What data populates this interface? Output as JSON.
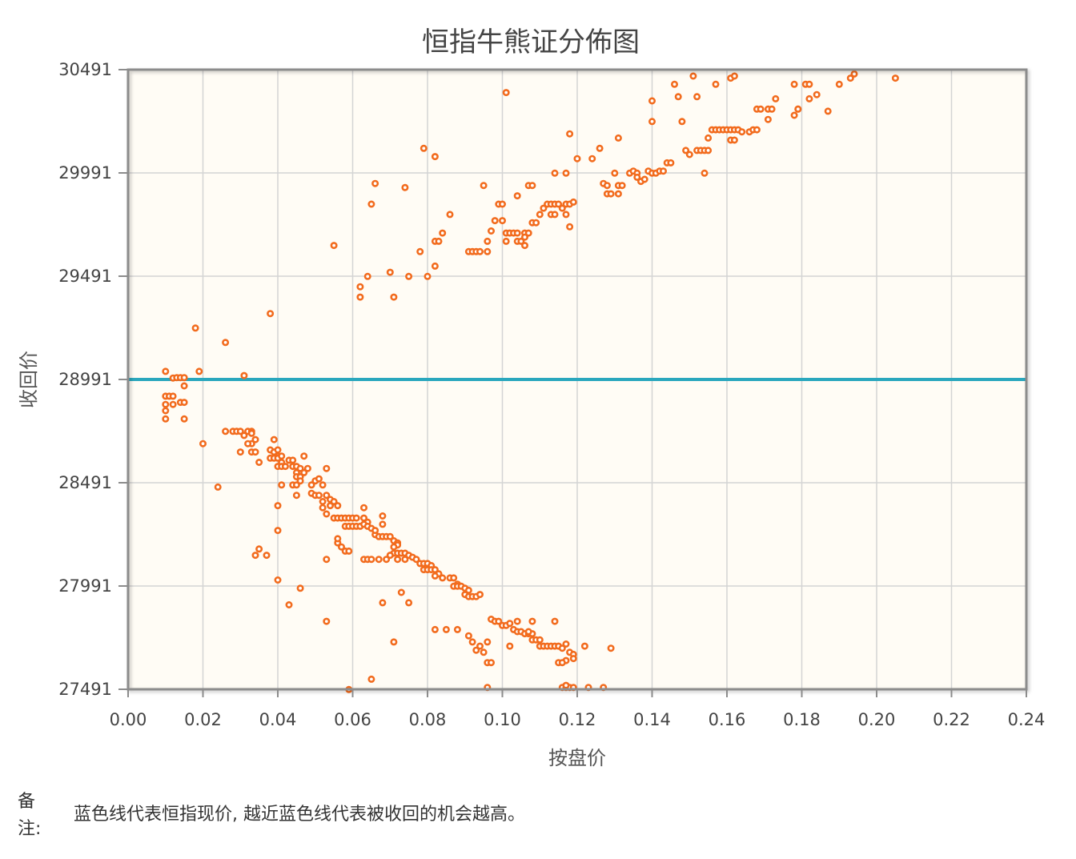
{
  "chart_data": {
    "type": "scatter",
    "title": "恒指牛熊证分佈图",
    "xlabel": "按盘价",
    "ylabel": "收回价",
    "xlim": [
      0,
      0.24
    ],
    "ylim": [
      27491,
      30491
    ],
    "x_ticks": [
      0.0,
      0.02,
      0.04,
      0.06,
      0.08,
      0.1,
      0.12,
      0.14,
      0.16,
      0.18,
      0.2,
      0.22,
      0.24
    ],
    "x_tick_labels": [
      "0.00",
      "0.02",
      "0.04",
      "0.06",
      "0.08",
      "0.10",
      "0.12",
      "0.14",
      "0.16",
      "0.18",
      "0.20",
      "0.22",
      "0.24"
    ],
    "y_ticks": [
      27491,
      27991,
      28491,
      28991,
      29491,
      29991,
      30491
    ],
    "y_tick_labels": [
      "27491",
      "27991",
      "28491",
      "28991",
      "29491",
      "29991",
      "30491"
    ],
    "grid": true,
    "reference_line": {
      "y": 28991,
      "color": "#2aa7bd"
    },
    "point_color": "#f26b1d",
    "plot_background": "#fffcf5",
    "points": [
      [
        0.01,
        29030
      ],
      [
        0.012,
        28998
      ],
      [
        0.013,
        29000
      ],
      [
        0.014,
        29000
      ],
      [
        0.015,
        29000
      ],
      [
        0.015,
        28960
      ],
      [
        0.018,
        29240
      ],
      [
        0.019,
        29030
      ],
      [
        0.01,
        28910
      ],
      [
        0.011,
        28910
      ],
      [
        0.012,
        28910
      ],
      [
        0.01,
        28870
      ],
      [
        0.012,
        28870
      ],
      [
        0.014,
        28880
      ],
      [
        0.015,
        28880
      ],
      [
        0.01,
        28840
      ],
      [
        0.01,
        28800
      ],
      [
        0.015,
        28800
      ],
      [
        0.02,
        28680
      ],
      [
        0.024,
        28470
      ],
      [
        0.026,
        29170
      ],
      [
        0.031,
        29010
      ],
      [
        0.026,
        28740
      ],
      [
        0.028,
        28740
      ],
      [
        0.029,
        28740
      ],
      [
        0.03,
        28740
      ],
      [
        0.031,
        28720
      ],
      [
        0.032,
        28740
      ],
      [
        0.033,
        28740
      ],
      [
        0.033,
        28730
      ],
      [
        0.034,
        28700
      ],
      [
        0.033,
        28680
      ],
      [
        0.032,
        28680
      ],
      [
        0.03,
        28640
      ],
      [
        0.033,
        28640
      ],
      [
        0.034,
        28640
      ],
      [
        0.035,
        28590
      ],
      [
        0.038,
        29310
      ],
      [
        0.039,
        28700
      ],
      [
        0.038,
        28650
      ],
      [
        0.039,
        28640
      ],
      [
        0.04,
        28650
      ],
      [
        0.04,
        28620
      ],
      [
        0.038,
        28610
      ],
      [
        0.039,
        28610
      ],
      [
        0.04,
        28610
      ],
      [
        0.041,
        28620
      ],
      [
        0.041,
        28590
      ],
      [
        0.04,
        28570
      ],
      [
        0.041,
        28570
      ],
      [
        0.042,
        28570
      ],
      [
        0.043,
        28600
      ],
      [
        0.044,
        28600
      ],
      [
        0.044,
        28570
      ],
      [
        0.045,
        28570
      ],
      [
        0.046,
        28560
      ],
      [
        0.047,
        28620
      ],
      [
        0.048,
        28560
      ],
      [
        0.047,
        28540
      ],
      [
        0.045,
        28540
      ],
      [
        0.045,
        28520
      ],
      [
        0.046,
        28520
      ],
      [
        0.044,
        28480
      ],
      [
        0.045,
        28480
      ],
      [
        0.046,
        28500
      ],
      [
        0.049,
        28480
      ],
      [
        0.05,
        28500
      ],
      [
        0.051,
        28510
      ],
      [
        0.052,
        28480
      ],
      [
        0.053,
        28560
      ],
      [
        0.041,
        28480
      ],
      [
        0.04,
        28380
      ],
      [
        0.045,
        28430
      ],
      [
        0.049,
        28440
      ],
      [
        0.05,
        28430
      ],
      [
        0.051,
        28430
      ],
      [
        0.052,
        28400
      ],
      [
        0.053,
        28430
      ],
      [
        0.054,
        28410
      ],
      [
        0.055,
        28400
      ],
      [
        0.056,
        28380
      ],
      [
        0.054,
        28380
      ],
      [
        0.052,
        28370
      ],
      [
        0.053,
        28340
      ],
      [
        0.055,
        28320
      ],
      [
        0.056,
        28320
      ],
      [
        0.057,
        28320
      ],
      [
        0.058,
        28320
      ],
      [
        0.059,
        28320
      ],
      [
        0.06,
        28320
      ],
      [
        0.061,
        28320
      ],
      [
        0.063,
        28370
      ],
      [
        0.063,
        28320
      ],
      [
        0.064,
        28300
      ],
      [
        0.058,
        28280
      ],
      [
        0.059,
        28280
      ],
      [
        0.06,
        28280
      ],
      [
        0.061,
        28280
      ],
      [
        0.062,
        28280
      ],
      [
        0.063,
        28290
      ],
      [
        0.064,
        28280
      ],
      [
        0.065,
        28270
      ],
      [
        0.066,
        28240
      ],
      [
        0.066,
        28260
      ],
      [
        0.067,
        28230
      ],
      [
        0.068,
        28230
      ],
      [
        0.069,
        28230
      ],
      [
        0.07,
        28230
      ],
      [
        0.071,
        28210
      ],
      [
        0.072,
        28200
      ],
      [
        0.068,
        28330
      ],
      [
        0.068,
        28290
      ],
      [
        0.072,
        28190
      ],
      [
        0.071,
        28180
      ],
      [
        0.071,
        28150
      ],
      [
        0.072,
        28150
      ],
      [
        0.073,
        28150
      ],
      [
        0.074,
        28150
      ],
      [
        0.075,
        28140
      ],
      [
        0.076,
        28130
      ],
      [
        0.074,
        28120
      ],
      [
        0.077,
        28120
      ],
      [
        0.078,
        28100
      ],
      [
        0.079,
        28100
      ],
      [
        0.08,
        28100
      ],
      [
        0.081,
        28090
      ],
      [
        0.079,
        28070
      ],
      [
        0.08,
        28070
      ],
      [
        0.081,
        28070
      ],
      [
        0.082,
        28070
      ],
      [
        0.083,
        28050
      ],
      [
        0.082,
        28040
      ],
      [
        0.084,
        28030
      ],
      [
        0.086,
        28030
      ],
      [
        0.087,
        28030
      ],
      [
        0.088,
        28000
      ],
      [
        0.087,
        27990
      ],
      [
        0.088,
        27990
      ],
      [
        0.089,
        27990
      ],
      [
        0.09,
        27980
      ],
      [
        0.091,
        27970
      ],
      [
        0.09,
        27950
      ],
      [
        0.091,
        27940
      ],
      [
        0.092,
        27940
      ],
      [
        0.093,
        27940
      ],
      [
        0.094,
        27950
      ],
      [
        0.056,
        28200
      ],
      [
        0.057,
        28180
      ],
      [
        0.058,
        28160
      ],
      [
        0.059,
        28160
      ],
      [
        0.056,
        28220
      ],
      [
        0.063,
        28120
      ],
      [
        0.064,
        28120
      ],
      [
        0.065,
        28120
      ],
      [
        0.067,
        28120
      ],
      [
        0.069,
        28120
      ],
      [
        0.07,
        28140
      ],
      [
        0.072,
        28120
      ],
      [
        0.053,
        28120
      ],
      [
        0.04,
        28020
      ],
      [
        0.043,
        27900
      ],
      [
        0.046,
        27980
      ],
      [
        0.053,
        27820
      ],
      [
        0.059,
        27490
      ],
      [
        0.065,
        27540
      ],
      [
        0.071,
        27720
      ],
      [
        0.075,
        27910
      ],
      [
        0.073,
        27960
      ],
      [
        0.068,
        27910
      ],
      [
        0.035,
        28170
      ],
      [
        0.037,
        28140
      ],
      [
        0.034,
        28140
      ],
      [
        0.04,
        28260
      ],
      [
        0.097,
        27830
      ],
      [
        0.098,
        27820
      ],
      [
        0.099,
        27820
      ],
      [
        0.1,
        27800
      ],
      [
        0.101,
        27800
      ],
      [
        0.102,
        27810
      ],
      [
        0.103,
        27780
      ],
      [
        0.104,
        27770
      ],
      [
        0.105,
        27770
      ],
      [
        0.104,
        27820
      ],
      [
        0.106,
        27760
      ],
      [
        0.107,
        27760
      ],
      [
        0.108,
        27760
      ],
      [
        0.108,
        27820
      ],
      [
        0.107,
        27770
      ],
      [
        0.108,
        27730
      ],
      [
        0.109,
        27730
      ],
      [
        0.11,
        27730
      ],
      [
        0.11,
        27700
      ],
      [
        0.111,
        27700
      ],
      [
        0.112,
        27700
      ],
      [
        0.113,
        27700
      ],
      [
        0.114,
        27700
      ],
      [
        0.115,
        27700
      ],
      [
        0.114,
        27820
      ],
      [
        0.116,
        27690
      ],
      [
        0.117,
        27710
      ],
      [
        0.118,
        27670
      ],
      [
        0.119,
        27660
      ],
      [
        0.117,
        27630
      ],
      [
        0.115,
        27620
      ],
      [
        0.116,
        27620
      ],
      [
        0.119,
        27640
      ],
      [
        0.122,
        27700
      ],
      [
        0.116,
        27500
      ],
      [
        0.117,
        27500
      ],
      [
        0.118,
        27500
      ],
      [
        0.117,
        27510
      ],
      [
        0.119,
        27500
      ],
      [
        0.123,
        27500
      ],
      [
        0.127,
        27500
      ],
      [
        0.129,
        27690
      ],
      [
        0.102,
        27700
      ],
      [
        0.096,
        27720
      ],
      [
        0.095,
        27670
      ],
      [
        0.094,
        27700
      ],
      [
        0.093,
        27680
      ],
      [
        0.096,
        27620
      ],
      [
        0.097,
        27620
      ],
      [
        0.096,
        27500
      ],
      [
        0.082,
        27780
      ],
      [
        0.085,
        27780
      ],
      [
        0.088,
        27780
      ],
      [
        0.091,
        27750
      ],
      [
        0.092,
        27720
      ],
      [
        0.055,
        29640
      ],
      [
        0.062,
        29440
      ],
      [
        0.062,
        29390
      ],
      [
        0.064,
        29490
      ],
      [
        0.065,
        29840
      ],
      [
        0.066,
        29940
      ],
      [
        0.07,
        29510
      ],
      [
        0.071,
        29390
      ],
      [
        0.074,
        29920
      ],
      [
        0.075,
        29490
      ],
      [
        0.078,
        29610
      ],
      [
        0.079,
        30110
      ],
      [
        0.08,
        29490
      ],
      [
        0.082,
        29540
      ],
      [
        0.082,
        30070
      ],
      [
        0.082,
        29660
      ],
      [
        0.083,
        29660
      ],
      [
        0.084,
        29700
      ],
      [
        0.086,
        29790
      ],
      [
        0.091,
        29610
      ],
      [
        0.092,
        29610
      ],
      [
        0.093,
        29610
      ],
      [
        0.094,
        29610
      ],
      [
        0.096,
        29660
      ],
      [
        0.096,
        29610
      ],
      [
        0.097,
        29710
      ],
      [
        0.098,
        29760
      ],
      [
        0.099,
        29840
      ],
      [
        0.1,
        29840
      ],
      [
        0.101,
        29700
      ],
      [
        0.101,
        29660
      ],
      [
        0.102,
        29700
      ],
      [
        0.103,
        29700
      ],
      [
        0.104,
        29700
      ],
      [
        0.104,
        29660
      ],
      [
        0.105,
        29660
      ],
      [
        0.106,
        29640
      ],
      [
        0.106,
        29700
      ],
      [
        0.107,
        29700
      ],
      [
        0.107,
        29930
      ],
      [
        0.108,
        29930
      ],
      [
        0.104,
        29880
      ],
      [
        0.106,
        29680
      ],
      [
        0.095,
        29930
      ],
      [
        0.1,
        29760
      ],
      [
        0.108,
        29750
      ],
      [
        0.109,
        29750
      ],
      [
        0.11,
        29790
      ],
      [
        0.111,
        29820
      ],
      [
        0.112,
        29840
      ],
      [
        0.113,
        29790
      ],
      [
        0.114,
        29790
      ],
      [
        0.113,
        29840
      ],
      [
        0.114,
        29840
      ],
      [
        0.115,
        29840
      ],
      [
        0.116,
        29820
      ],
      [
        0.117,
        29840
      ],
      [
        0.118,
        29840
      ],
      [
        0.119,
        29850
      ],
      [
        0.117,
        29790
      ],
      [
        0.118,
        29730
      ],
      [
        0.114,
        29990
      ],
      [
        0.117,
        29990
      ],
      [
        0.118,
        30180
      ],
      [
        0.12,
        30060
      ],
      [
        0.124,
        30060
      ],
      [
        0.126,
        30110
      ],
      [
        0.127,
        29940
      ],
      [
        0.128,
        29930
      ],
      [
        0.128,
        29890
      ],
      [
        0.129,
        29890
      ],
      [
        0.131,
        29890
      ],
      [
        0.13,
        29990
      ],
      [
        0.131,
        29930
      ],
      [
        0.132,
        29930
      ],
      [
        0.131,
        30160
      ],
      [
        0.101,
        30380
      ],
      [
        0.134,
        29990
      ],
      [
        0.135,
        30000
      ],
      [
        0.136,
        29990
      ],
      [
        0.136,
        29970
      ],
      [
        0.137,
        29950
      ],
      [
        0.138,
        29960
      ],
      [
        0.139,
        30000
      ],
      [
        0.14,
        29990
      ],
      [
        0.141,
        29990
      ],
      [
        0.142,
        30000
      ],
      [
        0.143,
        30000
      ],
      [
        0.144,
        30040
      ],
      [
        0.145,
        30040
      ],
      [
        0.14,
        30240
      ],
      [
        0.14,
        30340
      ],
      [
        0.146,
        30420
      ],
      [
        0.147,
        30360
      ],
      [
        0.148,
        30240
      ],
      [
        0.149,
        30100
      ],
      [
        0.151,
        30460
      ],
      [
        0.152,
        30360
      ],
      [
        0.15,
        30080
      ],
      [
        0.152,
        30100
      ],
      [
        0.153,
        30100
      ],
      [
        0.154,
        30100
      ],
      [
        0.155,
        30100
      ],
      [
        0.154,
        29990
      ],
      [
        0.155,
        30160
      ],
      [
        0.156,
        30200
      ],
      [
        0.157,
        30200
      ],
      [
        0.157,
        30420
      ],
      [
        0.158,
        30200
      ],
      [
        0.159,
        30200
      ],
      [
        0.16,
        30200
      ],
      [
        0.161,
        30150
      ],
      [
        0.161,
        30200
      ],
      [
        0.162,
        30200
      ],
      [
        0.162,
        30150
      ],
      [
        0.163,
        30200
      ],
      [
        0.164,
        30190
      ],
      [
        0.166,
        30190
      ],
      [
        0.167,
        30200
      ],
      [
        0.168,
        30200
      ],
      [
        0.161,
        30450
      ],
      [
        0.162,
        30460
      ],
      [
        0.168,
        30300
      ],
      [
        0.169,
        30300
      ],
      [
        0.171,
        30300
      ],
      [
        0.172,
        30300
      ],
      [
        0.171,
        30250
      ],
      [
        0.173,
        30350
      ],
      [
        0.178,
        30270
      ],
      [
        0.179,
        30300
      ],
      [
        0.179,
        30300
      ],
      [
        0.178,
        30420
      ],
      [
        0.181,
        30420
      ],
      [
        0.182,
        30420
      ],
      [
        0.182,
        30350
      ],
      [
        0.184,
        30370
      ],
      [
        0.187,
        30290
      ],
      [
        0.19,
        30420
      ],
      [
        0.193,
        30450
      ],
      [
        0.194,
        30470
      ],
      [
        0.205,
        30450
      ]
    ]
  }
}
